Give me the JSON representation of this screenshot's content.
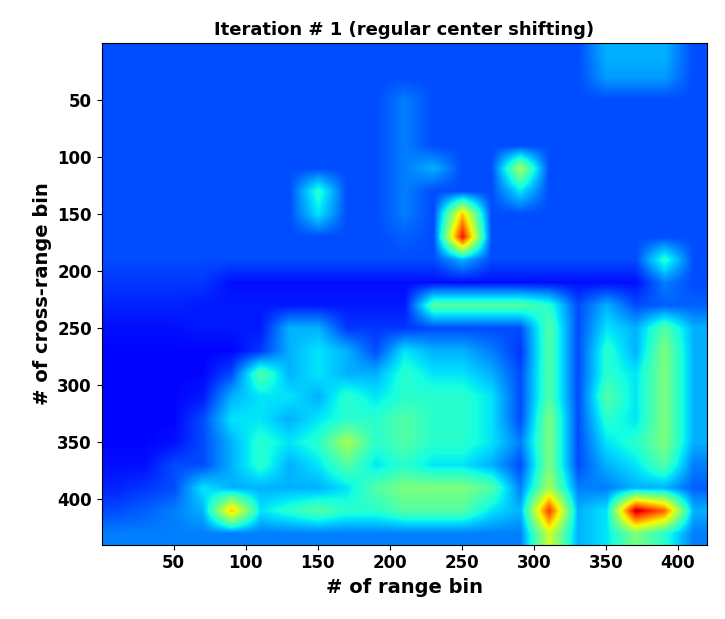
{
  "chart_data": {
    "type": "heatmap",
    "title": "Iteration # 1 (regular center shifting)",
    "x_label": "# of range bin",
    "y_label": "# of cross-range bin",
    "xlim": [
      0,
      420
    ],
    "ylim": [
      440,
      0
    ],
    "xticks": [
      50,
      100,
      150,
      200,
      250,
      300,
      350,
      400
    ],
    "yticks": [
      50,
      100,
      150,
      200,
      250,
      300,
      350,
      400
    ],
    "color": "jet",
    "color_range": [
      0,
      1
    ],
    "cells": [
      [
        0.2,
        0.2,
        0.2,
        0.2,
        0.2,
        0.2,
        0.2,
        0.2,
        0.2,
        0.2,
        0.2,
        0.2,
        0.2,
        0.2,
        0.2,
        0.2,
        0.2,
        0.3,
        0.3,
        0.3,
        0.2
      ],
      [
        0.2,
        0.2,
        0.2,
        0.2,
        0.2,
        0.2,
        0.2,
        0.2,
        0.2,
        0.2,
        0.2,
        0.2,
        0.2,
        0.2,
        0.2,
        0.2,
        0.2,
        0.28,
        0.28,
        0.28,
        0.2
      ],
      [
        0.2,
        0.2,
        0.2,
        0.2,
        0.2,
        0.2,
        0.2,
        0.2,
        0.2,
        0.2,
        0.25,
        0.2,
        0.2,
        0.2,
        0.2,
        0.2,
        0.2,
        0.2,
        0.2,
        0.2,
        0.2
      ],
      [
        0.2,
        0.2,
        0.2,
        0.2,
        0.2,
        0.2,
        0.2,
        0.2,
        0.2,
        0.2,
        0.25,
        0.2,
        0.2,
        0.2,
        0.2,
        0.2,
        0.2,
        0.2,
        0.2,
        0.2,
        0.2
      ],
      [
        0.2,
        0.2,
        0.2,
        0.2,
        0.2,
        0.2,
        0.2,
        0.2,
        0.2,
        0.2,
        0.25,
        0.2,
        0.2,
        0.2,
        0.2,
        0.2,
        0.2,
        0.2,
        0.2,
        0.2,
        0.2
      ],
      [
        0.2,
        0.2,
        0.2,
        0.2,
        0.2,
        0.2,
        0.2,
        0.2,
        0.2,
        0.2,
        0.25,
        0.3,
        0.2,
        0.2,
        0.55,
        0.2,
        0.2,
        0.2,
        0.2,
        0.2,
        0.2
      ],
      [
        0.2,
        0.2,
        0.2,
        0.2,
        0.2,
        0.2,
        0.2,
        0.4,
        0.2,
        0.2,
        0.25,
        0.2,
        0.2,
        0.2,
        0.35,
        0.2,
        0.2,
        0.2,
        0.2,
        0.2,
        0.2
      ],
      [
        0.2,
        0.2,
        0.2,
        0.2,
        0.2,
        0.2,
        0.2,
        0.35,
        0.2,
        0.2,
        0.25,
        0.2,
        0.7,
        0.2,
        0.2,
        0.2,
        0.2,
        0.2,
        0.2,
        0.2,
        0.2
      ],
      [
        0.2,
        0.2,
        0.2,
        0.2,
        0.2,
        0.2,
        0.2,
        0.2,
        0.2,
        0.2,
        0.22,
        0.2,
        0.9,
        0.2,
        0.2,
        0.2,
        0.2,
        0.2,
        0.2,
        0.2,
        0.2
      ],
      [
        0.2,
        0.2,
        0.2,
        0.2,
        0.2,
        0.2,
        0.2,
        0.2,
        0.2,
        0.2,
        0.2,
        0.2,
        0.3,
        0.2,
        0.2,
        0.2,
        0.2,
        0.2,
        0.2,
        0.4,
        0.2
      ],
      [
        0.18,
        0.18,
        0.18,
        0.18,
        0.14,
        0.14,
        0.14,
        0.14,
        0.14,
        0.14,
        0.14,
        0.14,
        0.14,
        0.14,
        0.14,
        0.14,
        0.14,
        0.14,
        0.14,
        0.25,
        0.2
      ],
      [
        0.16,
        0.16,
        0.16,
        0.15,
        0.15,
        0.15,
        0.15,
        0.15,
        0.15,
        0.15,
        0.15,
        0.45,
        0.45,
        0.45,
        0.45,
        0.4,
        0.2,
        0.3,
        0.2,
        0.22,
        0.22
      ],
      [
        0.14,
        0.14,
        0.14,
        0.15,
        0.15,
        0.15,
        0.3,
        0.3,
        0.18,
        0.18,
        0.18,
        0.2,
        0.2,
        0.2,
        0.2,
        0.45,
        0.2,
        0.35,
        0.3,
        0.45,
        0.3
      ],
      [
        0.13,
        0.13,
        0.13,
        0.13,
        0.13,
        0.18,
        0.3,
        0.35,
        0.3,
        0.2,
        0.35,
        0.3,
        0.3,
        0.25,
        0.18,
        0.45,
        0.2,
        0.4,
        0.3,
        0.5,
        0.3
      ],
      [
        0.13,
        0.13,
        0.13,
        0.13,
        0.2,
        0.45,
        0.3,
        0.35,
        0.3,
        0.3,
        0.4,
        0.35,
        0.35,
        0.3,
        0.2,
        0.45,
        0.2,
        0.4,
        0.35,
        0.5,
        0.3
      ],
      [
        0.13,
        0.13,
        0.13,
        0.15,
        0.3,
        0.35,
        0.35,
        0.3,
        0.4,
        0.35,
        0.4,
        0.4,
        0.4,
        0.35,
        0.2,
        0.45,
        0.2,
        0.45,
        0.35,
        0.5,
        0.3
      ],
      [
        0.13,
        0.13,
        0.13,
        0.2,
        0.35,
        0.35,
        0.3,
        0.35,
        0.4,
        0.4,
        0.45,
        0.4,
        0.4,
        0.35,
        0.2,
        0.5,
        0.2,
        0.4,
        0.35,
        0.5,
        0.3
      ],
      [
        0.13,
        0.13,
        0.14,
        0.2,
        0.3,
        0.4,
        0.35,
        0.4,
        0.55,
        0.4,
        0.45,
        0.4,
        0.4,
        0.35,
        0.25,
        0.5,
        0.2,
        0.35,
        0.4,
        0.5,
        0.3
      ],
      [
        0.14,
        0.14,
        0.2,
        0.2,
        0.3,
        0.4,
        0.3,
        0.35,
        0.45,
        0.35,
        0.4,
        0.35,
        0.35,
        0.3,
        0.2,
        0.5,
        0.2,
        0.3,
        0.35,
        0.45,
        0.25
      ],
      [
        0.16,
        0.18,
        0.2,
        0.35,
        0.3,
        0.3,
        0.3,
        0.3,
        0.35,
        0.45,
        0.5,
        0.5,
        0.5,
        0.45,
        0.25,
        0.55,
        0.25,
        0.25,
        0.3,
        0.3,
        0.22
      ],
      [
        0.2,
        0.22,
        0.25,
        0.3,
        0.7,
        0.35,
        0.4,
        0.45,
        0.4,
        0.4,
        0.45,
        0.45,
        0.45,
        0.35,
        0.3,
        0.85,
        0.3,
        0.35,
        0.95,
        0.8,
        0.3
      ],
      [
        0.25,
        0.25,
        0.25,
        0.25,
        0.25,
        0.25,
        0.25,
        0.25,
        0.25,
        0.25,
        0.25,
        0.25,
        0.25,
        0.25,
        0.25,
        0.6,
        0.3,
        0.35,
        0.5,
        0.4,
        0.25
      ]
    ]
  }
}
